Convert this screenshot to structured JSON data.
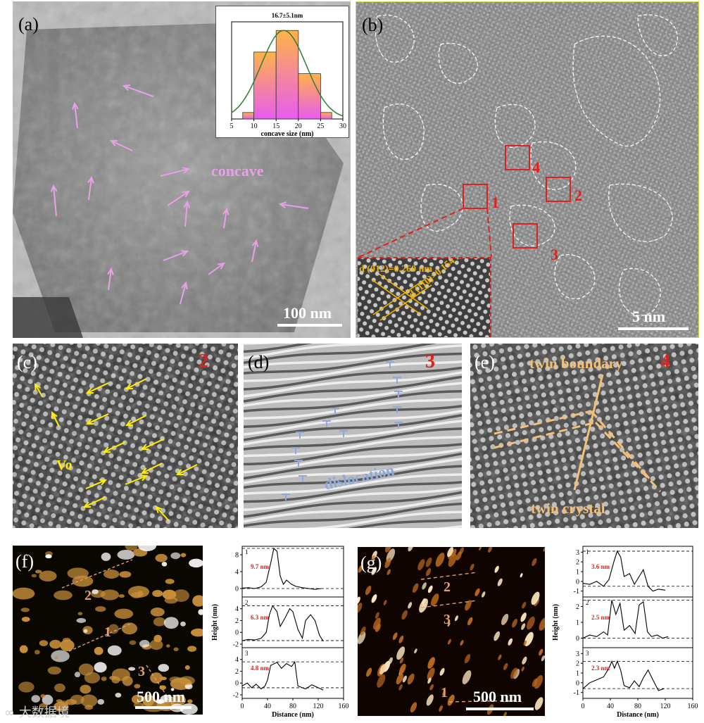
{
  "panels": {
    "a": {
      "label": "(a)",
      "annotation": "concave",
      "scale": "100 nm",
      "inset": {
        "chart_data": {
          "type": "bar",
          "title": "16.7±5.1nm",
          "xlabel": "concave size (nm)",
          "xticks": [
            5,
            10,
            15,
            20,
            25,
            30
          ],
          "bins": [
            [
              7.5,
              10
            ],
            [
              10,
              15
            ],
            [
              15,
              20
            ],
            [
              20,
              25
            ],
            [
              25,
              27.5
            ]
          ],
          "values": [
            0.06,
            0.62,
            0.82,
            0.42,
            0.06
          ],
          "fit": "gaussian",
          "fit_mean": 16.7,
          "fit_sd": 5.1,
          "colors": {
            "bar_top": "#ffb347",
            "bar_bottom": "#e85cf0",
            "fit_line": "#2e7d32"
          }
        }
      },
      "arrow_color": "#e7a2e6"
    },
    "b": {
      "label": "(b)",
      "scale": "5 nm",
      "boxes": [
        "1",
        "2",
        "3",
        "4"
      ],
      "inset_labels": [
        "d (012)=0.260 nm",
        "d (110)=0.154 nm"
      ],
      "box_color": "#e0201a",
      "label_color": "#f0b400"
    },
    "c": {
      "label": "(c)",
      "number": "2",
      "annotation": "Vo",
      "arrow_color": "#ffee00"
    },
    "d": {
      "label": "(d)",
      "number": "3",
      "annotation": "dislocation",
      "symbol_color": "#8fa8d8"
    },
    "e": {
      "label": "(e)",
      "number": "4",
      "annotations": [
        "twin boundary",
        "twin crystal"
      ],
      "line_color": "#f2c078"
    },
    "f": {
      "label": "(f)",
      "scale": "500 nm",
      "lines": [
        "1",
        "2",
        "3"
      ],
      "profile": {
        "chart_data": {
          "type": "line",
          "xlabel": "Distance (nm)",
          "ylabel": "Height (nm)",
          "xticks": [
            0,
            40,
            80,
            120,
            160
          ],
          "subplots": [
            {
              "id": "1",
              "label": "9.7 nm",
              "yticks": [
                0,
                4,
                8
              ],
              "x": [
                0,
                10,
                20,
                30,
                38,
                45,
                50,
                55,
                60,
                65,
                70,
                78,
                85,
                95,
                105,
                115,
                125
              ],
              "y": [
                0.1,
                0.2,
                0.0,
                0.4,
                1.5,
                6,
                9.5,
                8.8,
                3,
                1,
                2,
                1,
                0.5,
                0.2,
                0,
                -0.2,
                0
              ]
            },
            {
              "id": "2",
              "label": "6.3 nm",
              "yticks": [
                -2,
                0,
                2,
                4
              ],
              "x": [
                0,
                10,
                20,
                30,
                38,
                43,
                48,
                55,
                60,
                68,
                75,
                80,
                88,
                95,
                100,
                108,
                115,
                122,
                128
              ],
              "y": [
                -1.4,
                -1.2,
                -1.3,
                -1.0,
                0,
                3,
                4.5,
                3.5,
                1,
                2.5,
                4,
                3.5,
                0.5,
                -1,
                2,
                3,
                2,
                -0.5,
                -1.5
              ]
            },
            {
              "id": "3",
              "label": "4.8 nm",
              "yticks": [
                -2,
                0,
                2,
                4
              ],
              "x": [
                0,
                8,
                15,
                22,
                30,
                36,
                40,
                45,
                55,
                62,
                70,
                78,
                83,
                88,
                100,
                110,
                120,
                128
              ],
              "y": [
                -0.5,
                0,
                -0.8,
                -0.2,
                -1.0,
                -0.5,
                0.5,
                3,
                3.5,
                2.5,
                3.3,
                2.8,
                3.6,
                -0.5,
                -1.0,
                -0.3,
                -0.8,
                -1.2
              ]
            }
          ]
        }
      }
    },
    "g": {
      "label": "(g)",
      "scale": "500 nm",
      "lines": [
        "1",
        "2",
        "3"
      ],
      "profile": {
        "chart_data": {
          "type": "line",
          "xlabel": "Distance (nm)",
          "ylabel": "Height (nm)",
          "xticks": [
            0,
            40,
            80,
            120,
            160
          ],
          "subplots": [
            {
              "id": "1",
              "label": "3.6 nm",
              "yticks": [
                -1,
                0,
                1,
                2,
                3
              ],
              "x": [
                0,
                10,
                20,
                30,
                38,
                45,
                50,
                55,
                60,
                68,
                75,
                82,
                88,
                95,
                102,
                110,
                120
              ],
              "y": [
                -0.2,
                -0.3,
                0,
                -0.5,
                0.2,
                2,
                3.1,
                2.5,
                0.5,
                0.8,
                -0.3,
                0.5,
                1.2,
                -0.5,
                -1.0,
                -0.8,
                -0.9
              ]
            },
            {
              "id": "2",
              "label": "2.5 nm",
              "yticks": [
                0,
                1,
                2
              ],
              "x": [
                0,
                10,
                20,
                30,
                36,
                42,
                48,
                54,
                60,
                68,
                76,
                82,
                88,
                94,
                100,
                108,
                116,
                124
              ],
              "y": [
                0,
                0.2,
                0.1,
                0.4,
                0.2,
                2.4,
                1.5,
                2.2,
                0.5,
                0.8,
                0.3,
                2.1,
                2.3,
                0.4,
                0.1,
                0.2,
                0,
                0.1
              ]
            },
            {
              "id": "3",
              "label": "2.3 nm",
              "yticks": [
                -1,
                0,
                1,
                2,
                3
              ],
              "x": [
                0,
                10,
                20,
                30,
                38,
                42,
                46,
                50,
                55,
                60,
                68,
                75,
                82,
                88,
                95,
                102,
                110,
                118
              ],
              "y": [
                -0.6,
                0,
                0.3,
                0.6,
                1.5,
                2.2,
                1.5,
                2.2,
                1.3,
                -0.3,
                -0.5,
                0.2,
                -0.4,
                0.5,
                1.3,
                0.3,
                -0.8,
                -0.6
              ]
            }
          ]
        }
      }
    }
  },
  "watermark": "大数据境"
}
